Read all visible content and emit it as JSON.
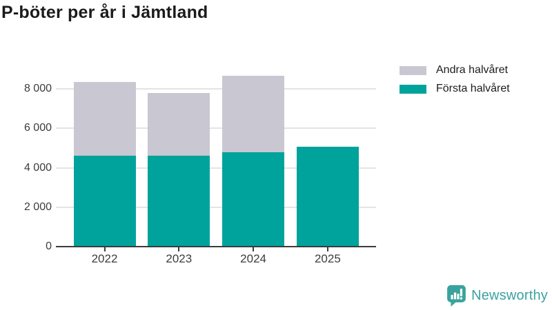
{
  "chart_data": {
    "type": "bar",
    "stacked": true,
    "title": "P-böter per år i Jämtland",
    "categories": [
      "2022",
      "2023",
      "2024",
      "2025"
    ],
    "series": [
      {
        "name": "Första halvåret",
        "color": "#00a39b",
        "values": [
          4600,
          4600,
          4800,
          5080
        ]
      },
      {
        "name": "Andra halvåret",
        "color": "#c9c7d1",
        "values": [
          3750,
          3200,
          3850,
          0
        ]
      }
    ],
    "totals": [
      8350,
      7800,
      8650,
      5080
    ],
    "xlabel": "",
    "ylabel": "",
    "yticks": [
      0,
      2000,
      4000,
      6000,
      8000
    ],
    "ytick_labels": [
      "0",
      "2 000",
      "4 000",
      "6 000",
      "8 000"
    ],
    "ylim": [
      0,
      9100
    ],
    "grid": true,
    "legend_position": "top-right"
  },
  "legend": {
    "items": [
      {
        "label": "Andra halvåret",
        "color": "#c9c7d1"
      },
      {
        "label": "Första halvåret",
        "color": "#00a39b"
      }
    ]
  },
  "branding": {
    "name": "Newsworthy",
    "color": "#3aa29d"
  }
}
